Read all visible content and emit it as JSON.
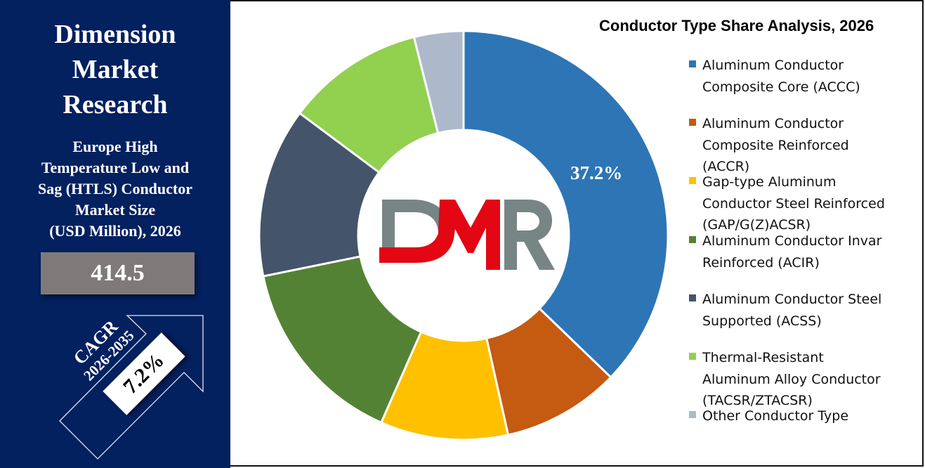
{
  "left_panel": {
    "brand_lines": [
      "Dimension",
      "Market",
      "Research"
    ],
    "subtitle_lines": [
      "Europe High",
      "Temperature Low and",
      "Sag (HTLS) Conductor",
      "Market Size",
      "(USD Million), 2026"
    ],
    "market_value": "414.5",
    "cagr_label": "CAGR",
    "cagr_period": "2026-2035",
    "cagr_value": "7.2%",
    "background_color": "#03205f"
  },
  "chart": {
    "title": "Conductor Type Share Analysis, 2026",
    "highlight_label": "37.2%",
    "center_logo": "DMR"
  },
  "legend": [
    {
      "lines": [
        "Aluminum Conductor",
        "Composite Core (ACCC)"
      ],
      "color": "#2e75b6"
    },
    {
      "lines": [
        "Aluminum Conductor",
        "Composite Reinforced",
        "(ACCR)"
      ],
      "color": "#c55a11"
    },
    {
      "lines": [
        "Gap-type Aluminum",
        "Conductor Steel Reinforced",
        "(GAP/G(Z)ACSR)"
      ],
      "color": "#ffc000"
    },
    {
      "lines": [
        "Aluminum Conductor Invar",
        "Reinforced (ACIR)"
      ],
      "color": "#548235"
    },
    {
      "lines": [
        "Aluminum Conductor Steel",
        "Supported (ACSS)"
      ],
      "color": "#44546a"
    },
    {
      "lines": [
        "Thermal-Resistant",
        "Aluminum Alloy Conductor",
        "(TACSR/ZTACSR)"
      ],
      "color": "#92d050"
    },
    {
      "lines": [
        "Other Conductor Type"
      ],
      "color": "#adb9ca"
    }
  ],
  "chart_data": {
    "type": "pie",
    "variant": "donut",
    "title": "Conductor Type Share Analysis, 2026",
    "categories": [
      "Aluminum Conductor Composite Core (ACCC)",
      "Aluminum Conductor Composite Reinforced (ACCR)",
      "Gap-type Aluminum Conductor Steel Reinforced (GAP/G(Z)ACSR)",
      "Aluminum Conductor Invar Reinforced (ACIR)",
      "Aluminum Conductor Steel Supported (ACSS)",
      "Thermal-Resistant Aluminum Alloy Conductor (TACSR/ZTACSR)",
      "Other Conductor Type"
    ],
    "values": [
      37.2,
      9.3,
      10.1,
      15.2,
      13.4,
      10.9,
      3.9
    ],
    "colors": [
      "#2e75b6",
      "#c55a11",
      "#ffc000",
      "#548235",
      "#44546a",
      "#92d050",
      "#adb9ca"
    ],
    "data_labels": {
      "Aluminum Conductor Composite Core (ACCC)": "37.2%"
    },
    "legend_position": "right",
    "unit": "%"
  }
}
